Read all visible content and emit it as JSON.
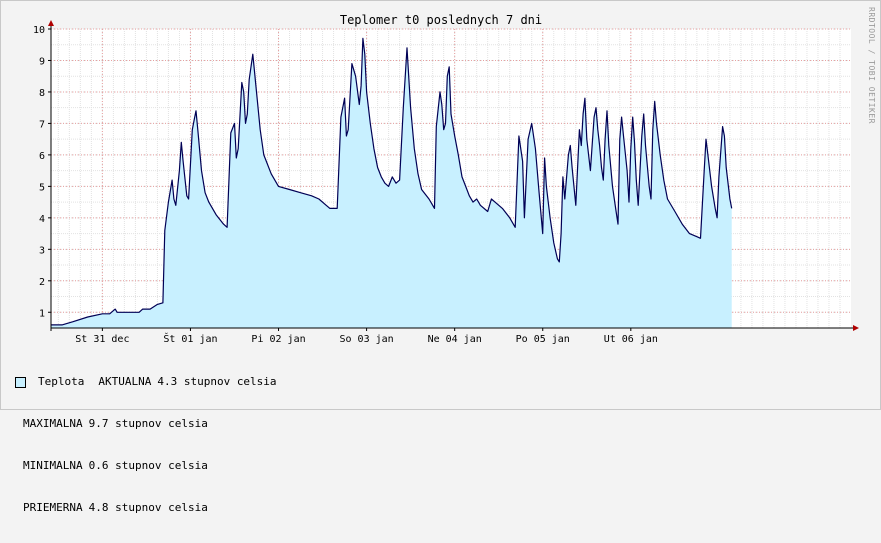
{
  "chart_data": {
    "type": "area",
    "title": "Teplomer t0 poslednych 7 dni",
    "watermark": "RRDTOOL / TOBI OETIKER",
    "x_unit": "hours since St 31 dec 00:00",
    "xlim": [
      -14,
      204
    ],
    "ylim": [
      0.5,
      10
    ],
    "y_ticks": [
      1,
      2,
      3,
      4,
      5,
      6,
      7,
      8,
      9,
      10
    ],
    "x_ticks": [
      {
        "label": "St 31 dec",
        "x": 0
      },
      {
        "label": "Št 01 jan",
        "x": 24
      },
      {
        "label": "Pi 02 jan",
        "x": 48
      },
      {
        "label": "So 03 jan",
        "x": 72
      },
      {
        "label": "Ne 04 jan",
        "x": 96
      },
      {
        "label": "Po 05 jan",
        "x": 120
      },
      {
        "label": "Ut 06 jan",
        "x": 144
      }
    ],
    "grid": true,
    "fill_color": "#c8f0ff",
    "line_color": "#000055",
    "series": [
      {
        "name": "Teplota",
        "points": [
          [
            -14,
            0.6
          ],
          [
            -11,
            0.6
          ],
          [
            -8,
            0.7
          ],
          [
            -4,
            0.85
          ],
          [
            0,
            0.95
          ],
          [
            2,
            0.95
          ],
          [
            3.5,
            1.1
          ],
          [
            4,
            1.0
          ],
          [
            10,
            1.0
          ],
          [
            11,
            1.1
          ],
          [
            13,
            1.1
          ],
          [
            15,
            1.25
          ],
          [
            16.5,
            1.3
          ],
          [
            17,
            3.6
          ],
          [
            18,
            4.5
          ],
          [
            19,
            5.2
          ],
          [
            19.5,
            4.6
          ],
          [
            20,
            4.4
          ],
          [
            21,
            5.5
          ],
          [
            21.5,
            6.4
          ],
          [
            22,
            5.8
          ],
          [
            23,
            4.7
          ],
          [
            23.5,
            4.6
          ],
          [
            24.5,
            6.8
          ],
          [
            25,
            7.1
          ],
          [
            25.5,
            7.4
          ],
          [
            26,
            6.8
          ],
          [
            27,
            5.5
          ],
          [
            28,
            4.8
          ],
          [
            29,
            4.5
          ],
          [
            31,
            4.1
          ],
          [
            33,
            3.8
          ],
          [
            34,
            3.7
          ],
          [
            35,
            6.7
          ],
          [
            36,
            7.0
          ],
          [
            36.5,
            5.9
          ],
          [
            37,
            6.2
          ],
          [
            38,
            8.3
          ],
          [
            38.5,
            8.0
          ],
          [
            39,
            7.0
          ],
          [
            39.5,
            7.3
          ],
          [
            40,
            8.4
          ],
          [
            41,
            9.2
          ],
          [
            42,
            8.0
          ],
          [
            43,
            6.8
          ],
          [
            44,
            6.0
          ],
          [
            46,
            5.4
          ],
          [
            48,
            5.0
          ],
          [
            51,
            4.9
          ],
          [
            54,
            4.8
          ],
          [
            57,
            4.7
          ],
          [
            59,
            4.6
          ],
          [
            61,
            4.4
          ],
          [
            62,
            4.3
          ],
          [
            64,
            4.3
          ],
          [
            65,
            7.2
          ],
          [
            66,
            7.8
          ],
          [
            66.5,
            6.6
          ],
          [
            67,
            6.8
          ],
          [
            68,
            8.9
          ],
          [
            69,
            8.5
          ],
          [
            70,
            7.6
          ],
          [
            70.5,
            8.2
          ],
          [
            71,
            9.7
          ],
          [
            71.5,
            9.2
          ],
          [
            72,
            8.0
          ],
          [
            73,
            7.0
          ],
          [
            74,
            6.2
          ],
          [
            75,
            5.6
          ],
          [
            76,
            5.3
          ],
          [
            77,
            5.1
          ],
          [
            78,
            5.0
          ],
          [
            79,
            5.3
          ],
          [
            80,
            5.1
          ],
          [
            81,
            5.2
          ],
          [
            82,
            7.5
          ],
          [
            83,
            9.4
          ],
          [
            84,
            7.5
          ],
          [
            85,
            6.2
          ],
          [
            86,
            5.4
          ],
          [
            87,
            4.9
          ],
          [
            89,
            4.6
          ],
          [
            90,
            4.4
          ],
          [
            90.5,
            4.3
          ],
          [
            91,
            6.9
          ],
          [
            92,
            8.0
          ],
          [
            92.5,
            7.6
          ],
          [
            93,
            6.8
          ],
          [
            93.5,
            7.0
          ],
          [
            94,
            8.5
          ],
          [
            94.5,
            8.8
          ],
          [
            95,
            7.3
          ],
          [
            96,
            6.6
          ],
          [
            97,
            6.0
          ],
          [
            98,
            5.3
          ],
          [
            99,
            5.0
          ],
          [
            100,
            4.7
          ],
          [
            101,
            4.5
          ],
          [
            102,
            4.6
          ],
          [
            103,
            4.4
          ],
          [
            105,
            4.2
          ],
          [
            106,
            4.6
          ],
          [
            107,
            4.5
          ],
          [
            109,
            4.3
          ],
          [
            111,
            4.0
          ],
          [
            112.5,
            3.7
          ],
          [
            113.5,
            6.6
          ],
          [
            114.5,
            5.8
          ],
          [
            115,
            4.0
          ],
          [
            116,
            6.5
          ],
          [
            117,
            7.0
          ],
          [
            118,
            6.2
          ],
          [
            119,
            4.8
          ],
          [
            120,
            3.5
          ],
          [
            120.5,
            5.9
          ],
          [
            121,
            5.0
          ],
          [
            122,
            4.0
          ],
          [
            123,
            3.2
          ],
          [
            124,
            2.7
          ],
          [
            124.5,
            2.6
          ],
          [
            125,
            3.5
          ],
          [
            125.5,
            5.3
          ],
          [
            126,
            4.6
          ],
          [
            127,
            6.0
          ],
          [
            127.5,
            6.3
          ],
          [
            128,
            5.6
          ],
          [
            129,
            4.4
          ],
          [
            130,
            6.8
          ],
          [
            130.5,
            6.3
          ],
          [
            131,
            7.3
          ],
          [
            131.5,
            7.8
          ],
          [
            132,
            6.5
          ],
          [
            133,
            5.5
          ],
          [
            134,
            7.2
          ],
          [
            134.5,
            7.5
          ],
          [
            135,
            6.8
          ],
          [
            135.5,
            6.3
          ],
          [
            136,
            5.6
          ],
          [
            136.5,
            5.2
          ],
          [
            137,
            6.5
          ],
          [
            137.5,
            7.4
          ],
          [
            138,
            6.3
          ],
          [
            139,
            5.0
          ],
          [
            140,
            4.2
          ],
          [
            140.5,
            3.8
          ],
          [
            141,
            6.5
          ],
          [
            141.5,
            7.2
          ],
          [
            142,
            6.6
          ],
          [
            143,
            5.5
          ],
          [
            143.5,
            4.5
          ],
          [
            144,
            6.2
          ],
          [
            144.5,
            7.2
          ],
          [
            145,
            6.4
          ],
          [
            145.5,
            5.2
          ],
          [
            146,
            4.4
          ],
          [
            147,
            6.6
          ],
          [
            147.5,
            7.3
          ],
          [
            148,
            6.3
          ],
          [
            149,
            5.0
          ],
          [
            149.5,
            4.6
          ],
          [
            150,
            6.8
          ],
          [
            150.5,
            7.7
          ],
          [
            151,
            7.0
          ],
          [
            152,
            6.0
          ],
          [
            153,
            5.2
          ],
          [
            154,
            4.6
          ],
          [
            156,
            4.2
          ],
          [
            158,
            3.8
          ],
          [
            160,
            3.5
          ],
          [
            162,
            3.4
          ],
          [
            163,
            3.35
          ],
          [
            164,
            5.5
          ],
          [
            164.5,
            6.5
          ],
          [
            165,
            6.0
          ],
          [
            166,
            5.0
          ],
          [
            167,
            4.3
          ],
          [
            167.5,
            4.0
          ],
          [
            168,
            5.3
          ],
          [
            169,
            6.9
          ],
          [
            169.5,
            6.6
          ],
          [
            170,
            5.6
          ],
          [
            171,
            4.6
          ],
          [
            171.5,
            4.3
          ]
        ]
      }
    ]
  },
  "legend": {
    "series_name": "Teplota",
    "current_label": "AKTUALNA",
    "current_value": "4.3 stupnov celsia",
    "stats": [
      {
        "label": "MAXIMALNA",
        "value": "9.7 stupnov celsia"
      },
      {
        "label": "MINIMALNA",
        "value": "0.6 stupnov celsia"
      },
      {
        "label": "PRIEMERNA",
        "value": "4.8 stupnov celsia"
      }
    ],
    "swatch_color": "#c8f0ff"
  }
}
